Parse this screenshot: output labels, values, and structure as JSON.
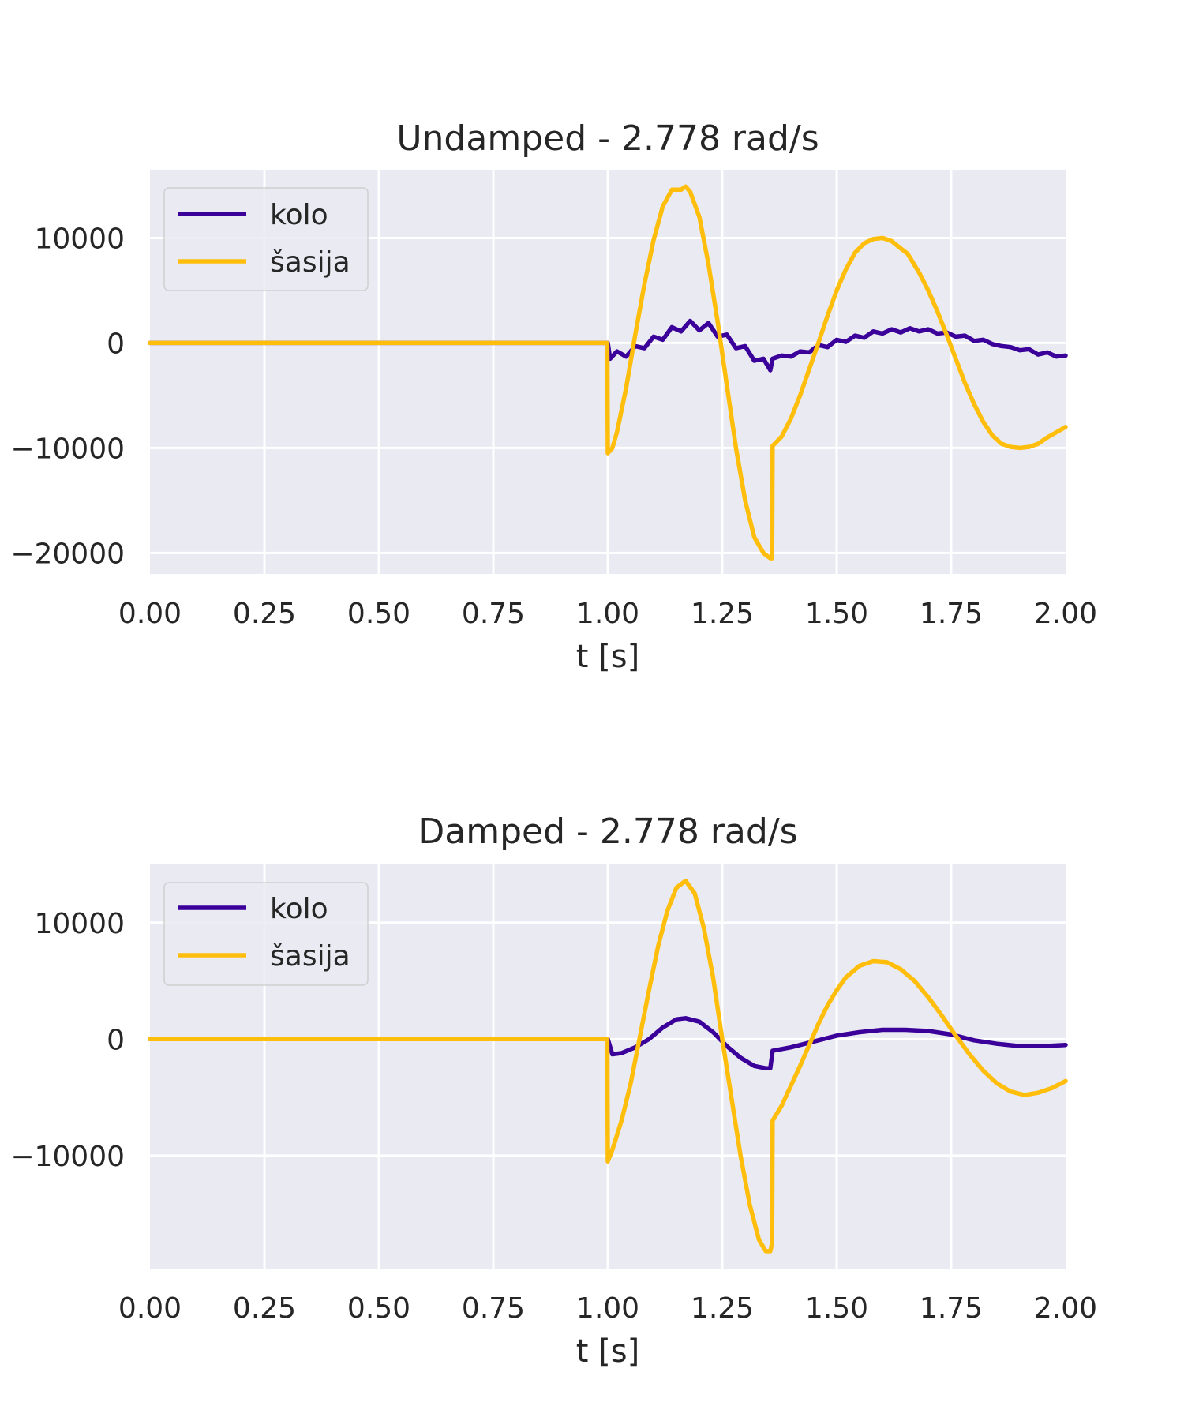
{
  "colors": {
    "background": "#eaeaf2",
    "grid": "#ffffff",
    "kolo": "#3a0099",
    "sasija": "#ffbe0b",
    "text": "#262626"
  },
  "chart_data": [
    {
      "type": "line",
      "title": "Undamped - 2.778 rad/s",
      "xlabel": "t [s]",
      "ylabel": "",
      "xlim": [
        0,
        2
      ],
      "ylim": [
        -22000,
        16500
      ],
      "xticks": [
        0,
        0.25,
        0.5,
        0.75,
        1.0,
        1.25,
        1.5,
        1.75,
        2.0
      ],
      "xtick_labels": [
        "0.00",
        "0.25",
        "0.50",
        "0.75",
        "1.00",
        "1.25",
        "1.50",
        "1.75",
        "2.00"
      ],
      "yticks": [
        10000,
        0,
        -10000,
        -20000
      ],
      "ytick_labels": [
        "10000",
        "0",
        "−10000",
        "−20000"
      ],
      "grid": true,
      "legend": "upper-left",
      "series": [
        {
          "name": "kolo",
          "x": [
            0,
            1.0,
            1.005,
            1.02,
            1.04,
            1.06,
            1.08,
            1.1,
            1.12,
            1.14,
            1.16,
            1.18,
            1.2,
            1.22,
            1.24,
            1.26,
            1.28,
            1.3,
            1.32,
            1.34,
            1.355,
            1.36,
            1.38,
            1.4,
            1.42,
            1.44,
            1.46,
            1.48,
            1.5,
            1.52,
            1.54,
            1.56,
            1.58,
            1.6,
            1.62,
            1.64,
            1.66,
            1.68,
            1.7,
            1.72,
            1.74,
            1.76,
            1.78,
            1.8,
            1.82,
            1.84,
            1.86,
            1.88,
            1.9,
            1.92,
            1.94,
            1.96,
            1.98,
            2.0
          ],
          "y": [
            0,
            0,
            -1500,
            -800,
            -1300,
            -300,
            -500,
            600,
            300,
            1500,
            1100,
            2100,
            1200,
            1900,
            600,
            800,
            -500,
            -300,
            -1700,
            -1500,
            -2600,
            -1500,
            -1200,
            -1300,
            -800,
            -900,
            -200,
            -400,
            300,
            100,
            700,
            500,
            1100,
            900,
            1300,
            1000,
            1400,
            1100,
            1300,
            900,
            1000,
            600,
            700,
            200,
            300,
            -100,
            -300,
            -400,
            -700,
            -600,
            -1100,
            -900,
            -1300,
            -1200
          ]
        },
        {
          "name": "šasija",
          "x": [
            0,
            0.999,
            1.0,
            1.01,
            1.02,
            1.04,
            1.06,
            1.08,
            1.1,
            1.12,
            1.14,
            1.16,
            1.17,
            1.18,
            1.2,
            1.22,
            1.24,
            1.26,
            1.28,
            1.3,
            1.32,
            1.34,
            1.355,
            1.359,
            1.36,
            1.38,
            1.4,
            1.42,
            1.44,
            1.46,
            1.48,
            1.5,
            1.52,
            1.54,
            1.56,
            1.58,
            1.6,
            1.62,
            1.64,
            1.655,
            1.68,
            1.7,
            1.72,
            1.74,
            1.76,
            1.78,
            1.8,
            1.82,
            1.84,
            1.86,
            1.88,
            1.9,
            1.92,
            1.94,
            1.96,
            1.98,
            2.0
          ],
          "y": [
            0,
            0,
            -10500,
            -10000,
            -8500,
            -4300,
            800,
            5600,
            9800,
            13000,
            14600,
            14600,
            14900,
            14400,
            12000,
            7500,
            2000,
            -4000,
            -10000,
            -15000,
            -18500,
            -20000,
            -20500,
            -20500,
            -9800,
            -8900,
            -7200,
            -5000,
            -2500,
            0,
            2600,
            5000,
            7000,
            8600,
            9500,
            9900,
            10000,
            9700,
            9000,
            8500,
            6700,
            5000,
            3000,
            800,
            -1500,
            -3800,
            -5800,
            -7500,
            -8800,
            -9600,
            -9900,
            -10000,
            -9900,
            -9600,
            -9000,
            -8500,
            -8000
          ]
        }
      ]
    },
    {
      "type": "line",
      "title": "Damped - 2.778 rad/s",
      "xlabel": "t [s]",
      "ylabel": "",
      "xlim": [
        0,
        2
      ],
      "ylim": [
        -19700,
        15000
      ],
      "xticks": [
        0,
        0.25,
        0.5,
        0.75,
        1.0,
        1.25,
        1.5,
        1.75,
        2.0
      ],
      "xtick_labels": [
        "0.00",
        "0.25",
        "0.50",
        "0.75",
        "1.00",
        "1.25",
        "1.50",
        "1.75",
        "2.00"
      ],
      "yticks": [
        10000,
        0,
        -10000
      ],
      "ytick_labels": [
        "10000",
        "0",
        "−10000"
      ],
      "grid": true,
      "legend": "upper-left",
      "series": [
        {
          "name": "kolo",
          "x": [
            0,
            1.0,
            1.01,
            1.03,
            1.06,
            1.09,
            1.12,
            1.15,
            1.17,
            1.2,
            1.23,
            1.26,
            1.29,
            1.32,
            1.345,
            1.355,
            1.36,
            1.4,
            1.45,
            1.5,
            1.55,
            1.6,
            1.65,
            1.7,
            1.75,
            1.8,
            1.85,
            1.9,
            1.95,
            2.0
          ],
          "y": [
            0,
            0,
            -1300,
            -1200,
            -700,
            0,
            1000,
            1700,
            1800,
            1500,
            600,
            -600,
            -1600,
            -2300,
            -2500,
            -2500,
            -1000,
            -700,
            -200,
            300,
            600,
            800,
            800,
            700,
            400,
            -100,
            -400,
            -600,
            -600,
            -500
          ]
        },
        {
          "name": "šasija",
          "x": [
            0,
            0.999,
            1.0,
            1.01,
            1.03,
            1.05,
            1.07,
            1.09,
            1.11,
            1.13,
            1.15,
            1.17,
            1.19,
            1.21,
            1.23,
            1.25,
            1.27,
            1.29,
            1.31,
            1.33,
            1.345,
            1.355,
            1.359,
            1.36,
            1.38,
            1.4,
            1.42,
            1.44,
            1.46,
            1.48,
            1.5,
            1.52,
            1.55,
            1.58,
            1.61,
            1.64,
            1.67,
            1.7,
            1.73,
            1.76,
            1.79,
            1.82,
            1.85,
            1.88,
            1.91,
            1.94,
            1.97,
            2.0
          ],
          "y": [
            0,
            0,
            -10500,
            -9500,
            -7000,
            -3800,
            200,
            4200,
            8000,
            11000,
            13000,
            13600,
            12500,
            9500,
            5300,
            0,
            -5000,
            -10000,
            -14200,
            -17200,
            -18200,
            -18200,
            -17500,
            -7000,
            -5700,
            -4000,
            -2300,
            -500,
            1300,
            2900,
            4200,
            5300,
            6300,
            6700,
            6600,
            6000,
            5000,
            3600,
            2000,
            300,
            -1300,
            -2700,
            -3800,
            -4500,
            -4800,
            -4600,
            -4200,
            -3600
          ]
        }
      ]
    }
  ]
}
